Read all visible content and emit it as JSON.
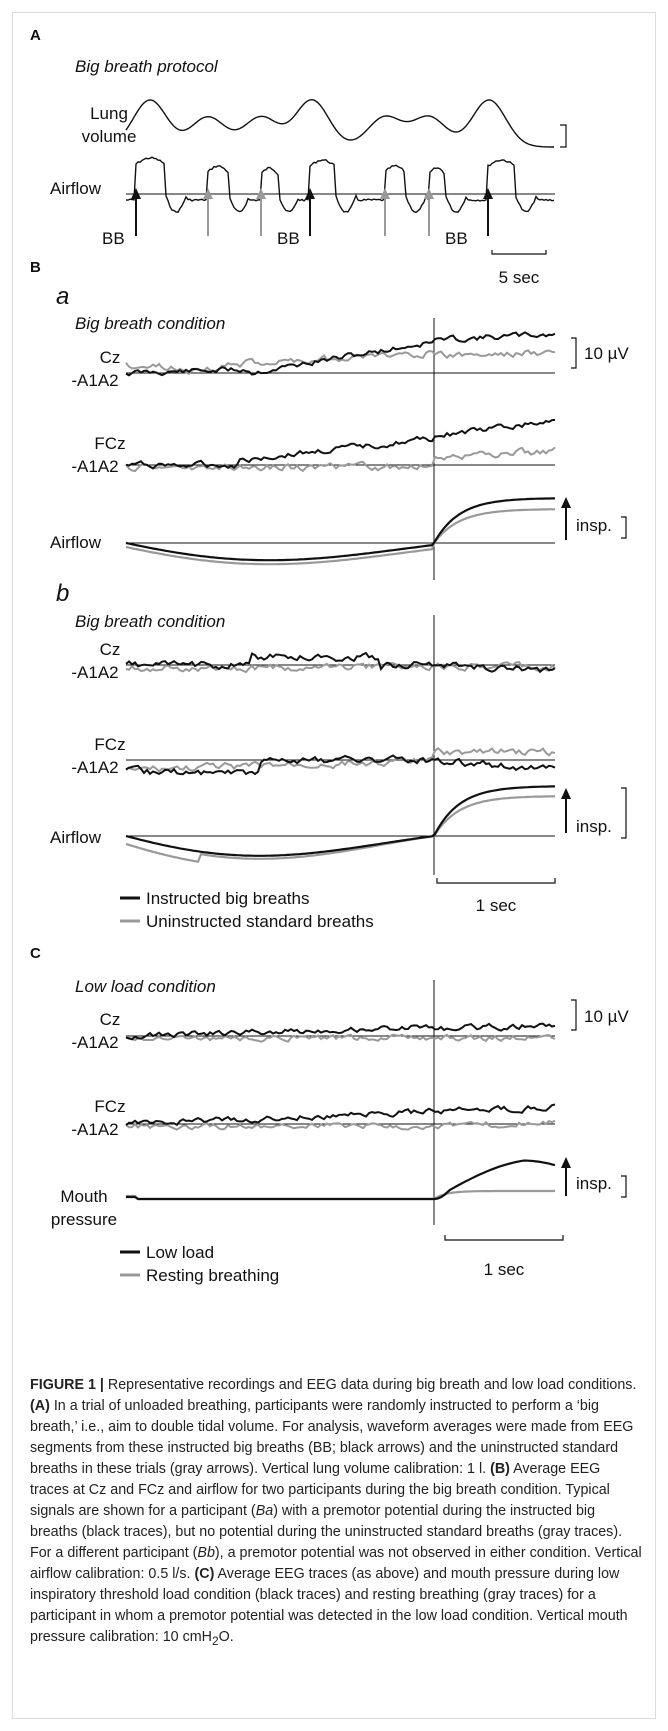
{
  "panel_a": {
    "label": "A",
    "title": "Big breath protocol",
    "lung_volume_label_line1": "Lung",
    "lung_volume_label_line2": "volume",
    "airflow_label": "Airflow",
    "bb_label": "BB",
    "time_scale": "5 sec"
  },
  "panel_b": {
    "label": "B",
    "sub_a": "a",
    "sub_b": "b",
    "condition_title": "Big breath condition",
    "cz_label_line1": "Cz",
    "cz_label_line2": "-A1A2",
    "fcz_label_line1": "FCz",
    "fcz_label_line2": "-A1A2",
    "airflow_label": "Airflow",
    "voltage_scale": "10 µV",
    "insp_label": "insp.",
    "time_scale": "1 sec",
    "legend_black": "Instructed big breaths",
    "legend_gray": "Uninstructed standard breaths"
  },
  "panel_c": {
    "label": "C",
    "condition_title": "Low load condition",
    "cz_label_line1": "Cz",
    "cz_label_line2": "-A1A2",
    "fcz_label_line1": "FCz",
    "fcz_label_line2": "-A1A2",
    "pressure_label_line1": "Mouth",
    "pressure_label_line2": "pressure",
    "voltage_scale": "10 µV",
    "insp_label": "insp.",
    "time_scale": "1 sec",
    "legend_black": "Low load",
    "legend_gray": "Resting breathing"
  },
  "colors": {
    "black_trace": "#111111",
    "gray_trace": "#999999"
  },
  "caption": {
    "figure_label": "FIGURE 1 |",
    "intro": " Representative recordings and EEG data during big breath and low load conditions. ",
    "a_tag": "(A)",
    "a_text": " In a trial of unloaded breathing, participants were randomly instructed to perform a ‘big breath,’ i.e., aim to double tidal volume. For analysis, waveform averages were made from EEG segments from these instructed big breaths (BB; black arrows) and the uninstructed standard breaths in these trials (gray arrows). Vertical lung volume calibration: 1 l. ",
    "b_tag": "(B)",
    "b_text1": " Average EEG traces at Cz and FCz and airflow for two participants during the big breath condition. Typical signals are shown for a participant (",
    "b_ref_a": "Ba",
    "b_text2": ") with a premotor potential during the instructed big breaths (black traces), but no potential during the uninstructed standard breaths (gray traces). For a different participant (",
    "b_ref_b": "Bb",
    "b_text3": "), a premotor potential was not observed in either condition. Vertical airflow calibration: 0.5 l/s. ",
    "c_tag": "(C)",
    "c_text": " Average EEG traces (as above) and mouth pressure during low inspiratory threshold load condition (black traces) and resting breathing (gray traces) for a participant in whom a premotor potential was detected in the low load condition. Vertical mouth pressure calibration: 10 cmH",
    "c_sub": "2",
    "c_end": "O."
  }
}
